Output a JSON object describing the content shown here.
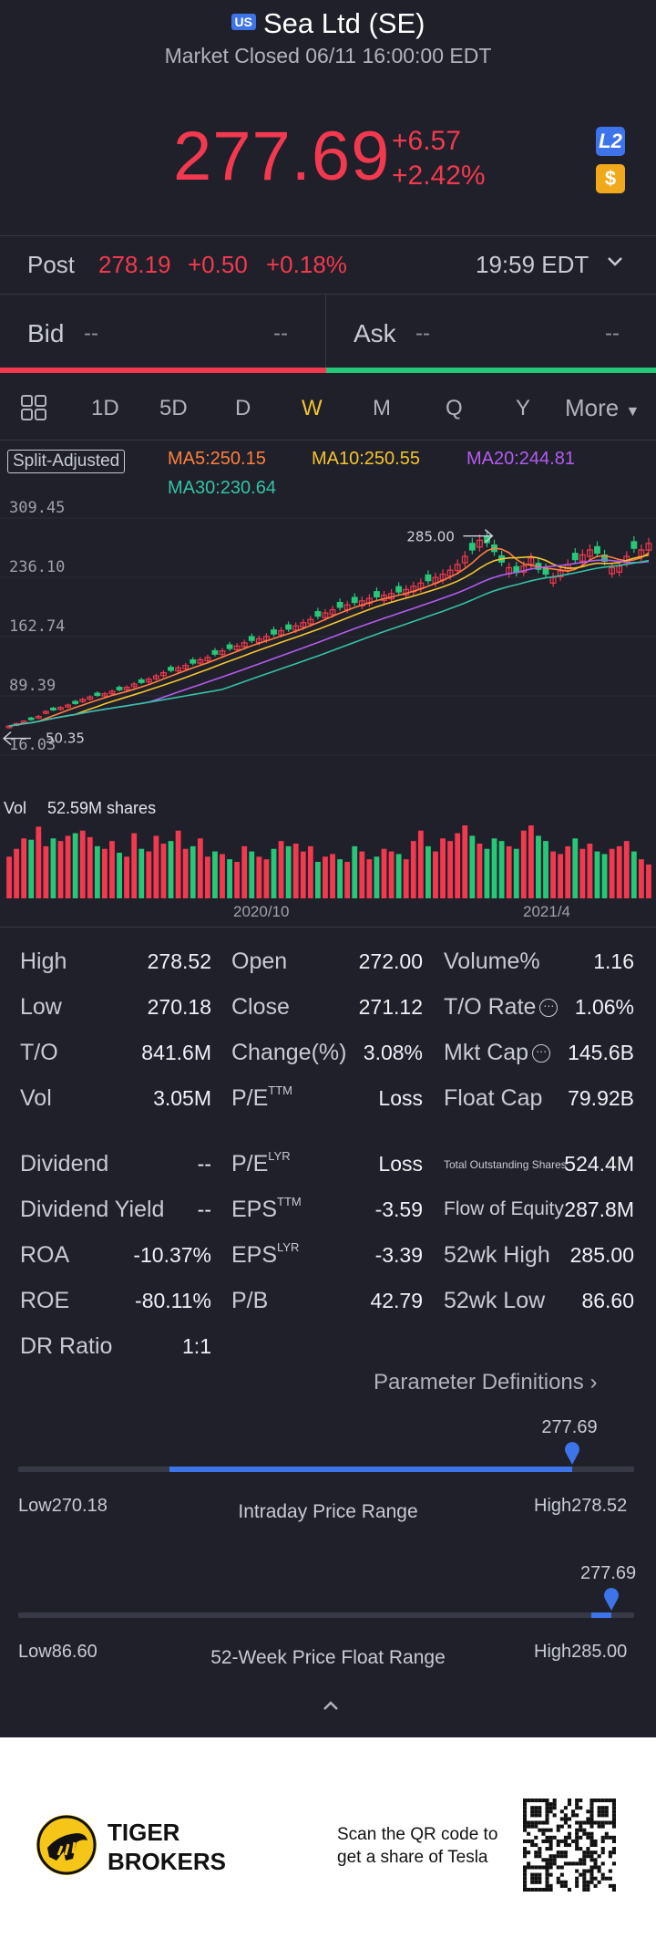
{
  "header": {
    "badge": "US",
    "title": "Sea Ltd (SE)",
    "status": "Market Closed 06/11 16:00:00 EDT"
  },
  "quote": {
    "price": "277.69",
    "change": "+6.57",
    "change_pct": "+2.42%",
    "l2_badge": "L2",
    "coin_badge": "$"
  },
  "post": {
    "label": "Post",
    "price": "278.19",
    "change": "+0.50",
    "change_pct": "+0.18%",
    "time": "19:59 EDT"
  },
  "bid_ask": {
    "bid_label": "Bid",
    "bid_price": "--",
    "bid_size": "--",
    "ask_label": "Ask",
    "ask_price": "--",
    "ask_size": "--"
  },
  "tabs": {
    "items": [
      "1D",
      "5D",
      "D",
      "W",
      "M",
      "Q",
      "Y"
    ],
    "active": "W",
    "more": "More"
  },
  "chart_meta": {
    "adjust": "Split-Adjusted",
    "ma5": "MA5:250.15",
    "ma10": "MA10:250.55",
    "ma20": "MA20:244.81",
    "ma30": "MA30:230.64",
    "colors": {
      "up": "#f2394f",
      "down": "#27c77a",
      "ma5": "#ff7f3f",
      "ma10": "#f4c430",
      "ma20": "#b35cf0",
      "ma30": "#35c2a8"
    }
  },
  "chart_data": {
    "type": "candlestick",
    "y_ticks": [
      "309.45",
      "236.10",
      "162.74",
      "89.39",
      "16.03"
    ],
    "ylim": [
      16.03,
      309.45
    ],
    "max_label": "285.00",
    "min_label": "50.35",
    "x_labels": [
      "2020/10",
      "2021/4"
    ],
    "volume_label": "Vol",
    "volume_value": "52.59M shares",
    "close": [
      52,
      55,
      58,
      60,
      64,
      70,
      72,
      75,
      78,
      80,
      85,
      88,
      90,
      92,
      95,
      97,
      100,
      104,
      106,
      110,
      114,
      118,
      121,
      124,
      127,
      130,
      134,
      137,
      141,
      145,
      148,
      151,
      155,
      158,
      160,
      163,
      166,
      170,
      172,
      176,
      180,
      184,
      188,
      192,
      196,
      199,
      202,
      205,
      207,
      210,
      212,
      214,
      216,
      218,
      221,
      225,
      229,
      232,
      236,
      240,
      245,
      252,
      262,
      270,
      282,
      279,
      268,
      255,
      248,
      242,
      250,
      260,
      246,
      240,
      236,
      244,
      252,
      258,
      264,
      270,
      266,
      256,
      248,
      250,
      262,
      272,
      270,
      278
    ],
    "volume": [
      32,
      38,
      46,
      45,
      55,
      40,
      46,
      44,
      48,
      50,
      52,
      47,
      40,
      38,
      44,
      35,
      32,
      50,
      38,
      36,
      48,
      42,
      44,
      52,
      38,
      40,
      46,
      32,
      36,
      34,
      30,
      28,
      40,
      36,
      32,
      30,
      38,
      44,
      40,
      42,
      36,
      40,
      28,
      32,
      34,
      30,
      28,
      40,
      36,
      30,
      32,
      38,
      36,
      34,
      30,
      44,
      52,
      40,
      36,
      46,
      44,
      50,
      56,
      48,
      42,
      38,
      46,
      44,
      40,
      38,
      52,
      56,
      48,
      44,
      36,
      34,
      40,
      46,
      38,
      42,
      36,
      34,
      38,
      40,
      44,
      36,
      30,
      26
    ],
    "up": [
      true,
      true,
      true,
      false,
      true,
      true,
      false,
      true,
      true,
      false,
      true,
      true,
      false,
      true,
      true,
      false,
      true,
      true,
      false,
      true,
      true,
      true,
      false,
      true,
      true,
      false,
      true,
      true,
      false,
      true,
      false,
      true,
      true,
      false,
      true,
      true,
      false,
      true,
      false,
      true,
      true,
      true,
      false,
      true,
      true,
      false,
      true,
      false,
      true,
      true,
      false,
      true,
      true,
      false,
      true,
      true,
      true,
      false,
      true,
      true,
      true,
      true,
      true,
      false,
      true,
      false,
      false,
      false,
      true,
      false,
      true,
      true,
      false,
      false,
      true,
      true,
      true,
      false,
      true,
      true,
      false,
      false,
      true,
      true,
      true,
      false,
      true,
      true
    ]
  },
  "stats": {
    "col1": [
      {
        "label": "High",
        "value": "278.52"
      },
      {
        "label": "Low",
        "value": "270.18"
      },
      {
        "label": "T/O",
        "value": "841.6M"
      },
      {
        "label": "Vol",
        "value": "3.05M"
      }
    ],
    "col2": [
      {
        "label": "Open",
        "value": "272.00"
      },
      {
        "label": "Close",
        "value": "271.12"
      },
      {
        "label": "Change(%)",
        "value": "3.08%"
      },
      {
        "label": "P/E",
        "sup": "TTM",
        "value": "Loss"
      }
    ],
    "col3": [
      {
        "label": "Volume%",
        "value": "1.16"
      },
      {
        "label": "T/O Rate",
        "value": "1.06%"
      },
      {
        "label": "Mkt Cap",
        "value": "145.6B"
      },
      {
        "label": "Float Cap",
        "value": "79.92B"
      }
    ],
    "b1": [
      {
        "label": "Dividend",
        "value": "--"
      },
      {
        "label": "Dividend Yield",
        "value": "--"
      },
      {
        "label": "ROA",
        "value": "-10.37%"
      },
      {
        "label": "ROE",
        "value": "-80.11%"
      },
      {
        "label": "DR Ratio",
        "value": "1:1"
      }
    ],
    "b2": [
      {
        "label": "P/E",
        "sup": "LYR",
        "value": "Loss"
      },
      {
        "label": "EPS",
        "sup": "TTM",
        "value": "-3.59"
      },
      {
        "label": "EPS",
        "sup": "LYR",
        "value": "-3.39"
      },
      {
        "label": "P/B",
        "value": "42.79"
      }
    ],
    "b3": [
      {
        "label": "Total Outstanding Shares",
        "value": "524.4M"
      },
      {
        "label": "Flow of Equity",
        "value": "287.8M"
      },
      {
        "label": "52wk High",
        "value": "285.00"
      },
      {
        "label": "52wk Low",
        "value": "86.60"
      }
    ]
  },
  "param_def": "Parameter Definitions",
  "ranges": {
    "intraday": {
      "title": "Intraday Price Range",
      "low_label": "Low270.18",
      "high_label": "High278.52",
      "current": "277.69",
      "position": 0.9,
      "fill_start": 0.245
    },
    "week52": {
      "title": "52-Week Price Float Range",
      "low_label": "Low86.60",
      "high_label": "High285.00",
      "current": "277.69",
      "position": 0.963,
      "fill_start": 0.93
    }
  },
  "footer": {
    "brand_line1": "TIGER",
    "brand_line2": "BROKERS",
    "scan_line1": "Scan the QR code to",
    "scan_line2": "get a share of Tesla"
  }
}
